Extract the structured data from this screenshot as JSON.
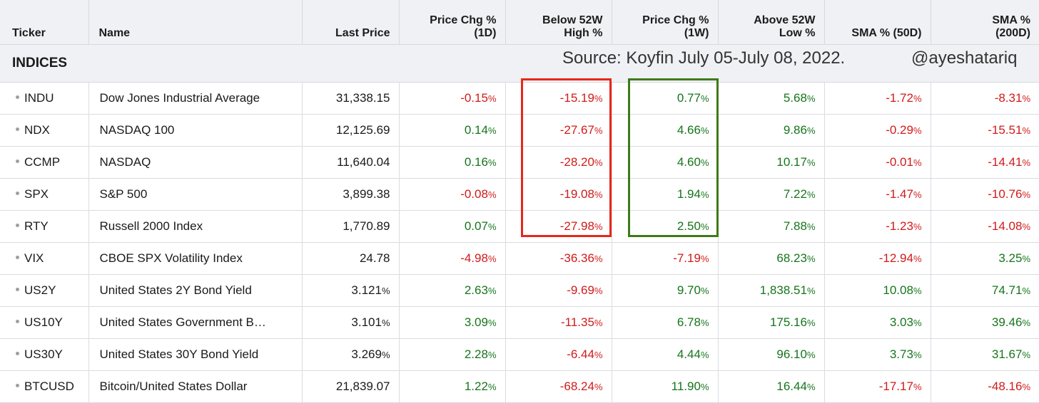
{
  "columns": [
    "Ticker",
    "Name",
    "Last Price",
    "Price Chg %\n(1D)",
    "Below 52W\nHigh %",
    "Price Chg %\n(1W)",
    "Above 52W\nLow %",
    "SMA % (50D)",
    "SMA %\n(200D)"
  ],
  "header": {
    "ticker": "Ticker",
    "name": "Name",
    "last_price": "Last Price",
    "chg1d_l1": "Price Chg %",
    "chg1d_l2": "(1D)",
    "below52_l1": "Below 52W",
    "below52_l2": "High %",
    "chg1w_l1": "Price Chg %",
    "chg1w_l2": "(1W)",
    "above52_l1": "Above 52W",
    "above52_l2": "Low %",
    "sma50": "SMA % (50D)",
    "sma200_l1": "SMA %",
    "sma200_l2": "(200D)"
  },
  "section": {
    "title": "INDICES",
    "source": "Source: Koyfin  July 05-July 08, 2022.",
    "handle": "@ayeshatariq"
  },
  "percent_sign": "%",
  "colors": {
    "negative": "#d11a1a",
    "positive": "#15751c",
    "highlight_red": "#e8261a",
    "highlight_green": "#3f7a1a"
  },
  "highlights": [
    {
      "column": "Below 52W High %",
      "rows": [
        "INDU",
        "NDX",
        "CCMP",
        "SPX",
        "RTY"
      ],
      "color": "red"
    },
    {
      "column": "Price Chg % (1W)",
      "rows": [
        "INDU",
        "NDX",
        "CCMP",
        "SPX",
        "RTY"
      ],
      "color": "green"
    }
  ],
  "rows": [
    {
      "ticker": "INDU",
      "name": "Dow Jones Industrial Average",
      "last": "31,338.15",
      "last_pct": false,
      "chg1d": "-0.15",
      "below52": "-15.19",
      "chg1w": "0.77",
      "above52": "5.68",
      "sma50": "-1.72",
      "sma200": "-8.31"
    },
    {
      "ticker": "NDX",
      "name": "NASDAQ 100",
      "last": "12,125.69",
      "last_pct": false,
      "chg1d": "0.14",
      "below52": "-27.67",
      "chg1w": "4.66",
      "above52": "9.86",
      "sma50": "-0.29",
      "sma200": "-15.51"
    },
    {
      "ticker": "CCMP",
      "name": "NASDAQ",
      "last": "11,640.04",
      "last_pct": false,
      "chg1d": "0.16",
      "below52": "-28.20",
      "chg1w": "4.60",
      "above52": "10.17",
      "sma50": "-0.01",
      "sma200": "-14.41"
    },
    {
      "ticker": "SPX",
      "name": "S&P 500",
      "last": "3,899.38",
      "last_pct": false,
      "chg1d": "-0.08",
      "below52": "-19.08",
      "chg1w": "1.94",
      "above52": "7.22",
      "sma50": "-1.47",
      "sma200": "-10.76"
    },
    {
      "ticker": "RTY",
      "name": "Russell 2000 Index",
      "last": "1,770.89",
      "last_pct": false,
      "chg1d": "0.07",
      "below52": "-27.98",
      "chg1w": "2.50",
      "above52": "7.88",
      "sma50": "-1.23",
      "sma200": "-14.08"
    },
    {
      "ticker": "VIX",
      "name": "CBOE SPX Volatility Index",
      "last": "24.78",
      "last_pct": false,
      "chg1d": "-4.98",
      "below52": "-36.36",
      "chg1w": "-7.19",
      "above52": "68.23",
      "sma50": "-12.94",
      "sma200": "3.25"
    },
    {
      "ticker": "US2Y",
      "name": "United States 2Y Bond Yield",
      "last": "3.121",
      "last_pct": true,
      "chg1d": "2.63",
      "below52": "-9.69",
      "chg1w": "9.70",
      "above52": "1,838.51",
      "sma50": "10.08",
      "sma200": "74.71"
    },
    {
      "ticker": "US10Y",
      "name": "United States Government B…",
      "last": "3.101",
      "last_pct": true,
      "chg1d": "3.09",
      "below52": "-11.35",
      "chg1w": "6.78",
      "above52": "175.16",
      "sma50": "3.03",
      "sma200": "39.46"
    },
    {
      "ticker": "US30Y",
      "name": "United States 30Y Bond Yield",
      "last": "3.269",
      "last_pct": true,
      "chg1d": "2.28",
      "below52": "-6.44",
      "chg1w": "4.44",
      "above52": "96.10",
      "sma50": "3.73",
      "sma200": "31.67"
    },
    {
      "ticker": "BTCUSD",
      "name": "Bitcoin/United States Dollar",
      "last": "21,839.07",
      "last_pct": false,
      "chg1d": "1.22",
      "below52": "-68.24",
      "chg1w": "11.90",
      "above52": "16.44",
      "sma50": "-17.17",
      "sma200": "-48.16"
    }
  ]
}
